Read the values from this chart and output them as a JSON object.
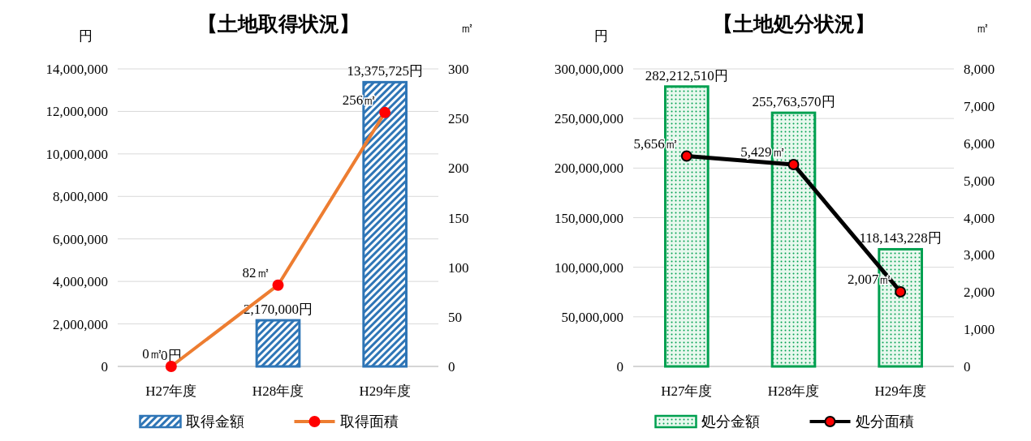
{
  "chart_data": [
    {
      "type": "bar",
      "title": "【土地取得状況】",
      "ylabel": "円",
      "y2label": "㎡",
      "categories": [
        "H27年度",
        "H28年度",
        "H29年度"
      ],
      "series": [
        {
          "name": "取得金額",
          "color": "#2e75b6",
          "values": [
            0,
            2170000,
            13375725
          ],
          "value_labels": [
            "0円",
            "2,170,000円",
            "13,375,725円"
          ]
        },
        {
          "name": "取得面積",
          "type": "line",
          "axis": "y2",
          "color": "#ed7d31",
          "marker": "circle",
          "values": [
            0,
            82,
            256
          ],
          "value_labels": [
            "0㎡",
            "82㎡",
            "256㎡"
          ]
        }
      ],
      "ylim": [
        0,
        14000000
      ],
      "yticks": [
        0,
        {
          "value": 2000000,
          "label": "2,000,000"
        },
        {
          "value": 4000000,
          "label": "4,000,000"
        },
        {
          "value": 6000000,
          "label": "6,000,000"
        },
        {
          "value": 8000000,
          "label": "8,000,000"
        },
        {
          "value": 10000000,
          "label": "10,000,000"
        },
        {
          "value": 12000000,
          "label": "12,000,000"
        },
        {
          "value": 14000000,
          "label": "14,000,000"
        }
      ],
      "y2lim": [
        0,
        300
      ],
      "y2ticks": [
        0,
        50,
        100,
        150,
        200,
        250,
        300
      ],
      "grid": "y",
      "legend": "bottom"
    },
    {
      "type": "bar",
      "title": "【土地処分状況】",
      "ylabel": "円",
      "y2label": "㎡",
      "categories": [
        "H27年度",
        "H28年度",
        "H29年度"
      ],
      "series": [
        {
          "name": "処分金額",
          "color": "#00a050",
          "values": [
            282212510,
            255763570,
            118143228
          ],
          "value_labels": [
            "282,212,510円",
            "255,763,570円",
            "118,143,228円"
          ]
        },
        {
          "name": "処分面積",
          "type": "line",
          "axis": "y2",
          "color": "#000000",
          "marker": "circle",
          "values": [
            5656,
            5429,
            2007
          ],
          "value_labels": [
            "5,656㎡",
            "5,429㎡",
            "2,007㎡"
          ]
        }
      ],
      "ylim": [
        0,
        300000000
      ],
      "yticks": [
        0,
        {
          "value": 50000000,
          "label": "50,000,000"
        },
        {
          "value": 100000000,
          "label": "100,000,000"
        },
        {
          "value": 150000000,
          "label": "150,000,000"
        },
        {
          "value": 200000000,
          "label": "200,000,000"
        },
        {
          "value": 250000000,
          "label": "250,000,000"
        },
        {
          "value": 300000000,
          "label": "300,000,000"
        }
      ],
      "y2lim": [
        0,
        8000
      ],
      "y2ticks": [
        0,
        {
          "value": 1000,
          "label": "1,000"
        },
        {
          "value": 2000,
          "label": "2,000"
        },
        {
          "value": 3000,
          "label": "3,000"
        },
        {
          "value": 4000,
          "label": "4,000"
        },
        {
          "value": 5000,
          "label": "5,000"
        },
        {
          "value": 6000,
          "label": "6,000"
        },
        {
          "value": 7000,
          "label": "7,000"
        },
        {
          "value": 8000,
          "label": "8,000"
        }
      ],
      "grid": "y",
      "legend": "bottom"
    }
  ]
}
